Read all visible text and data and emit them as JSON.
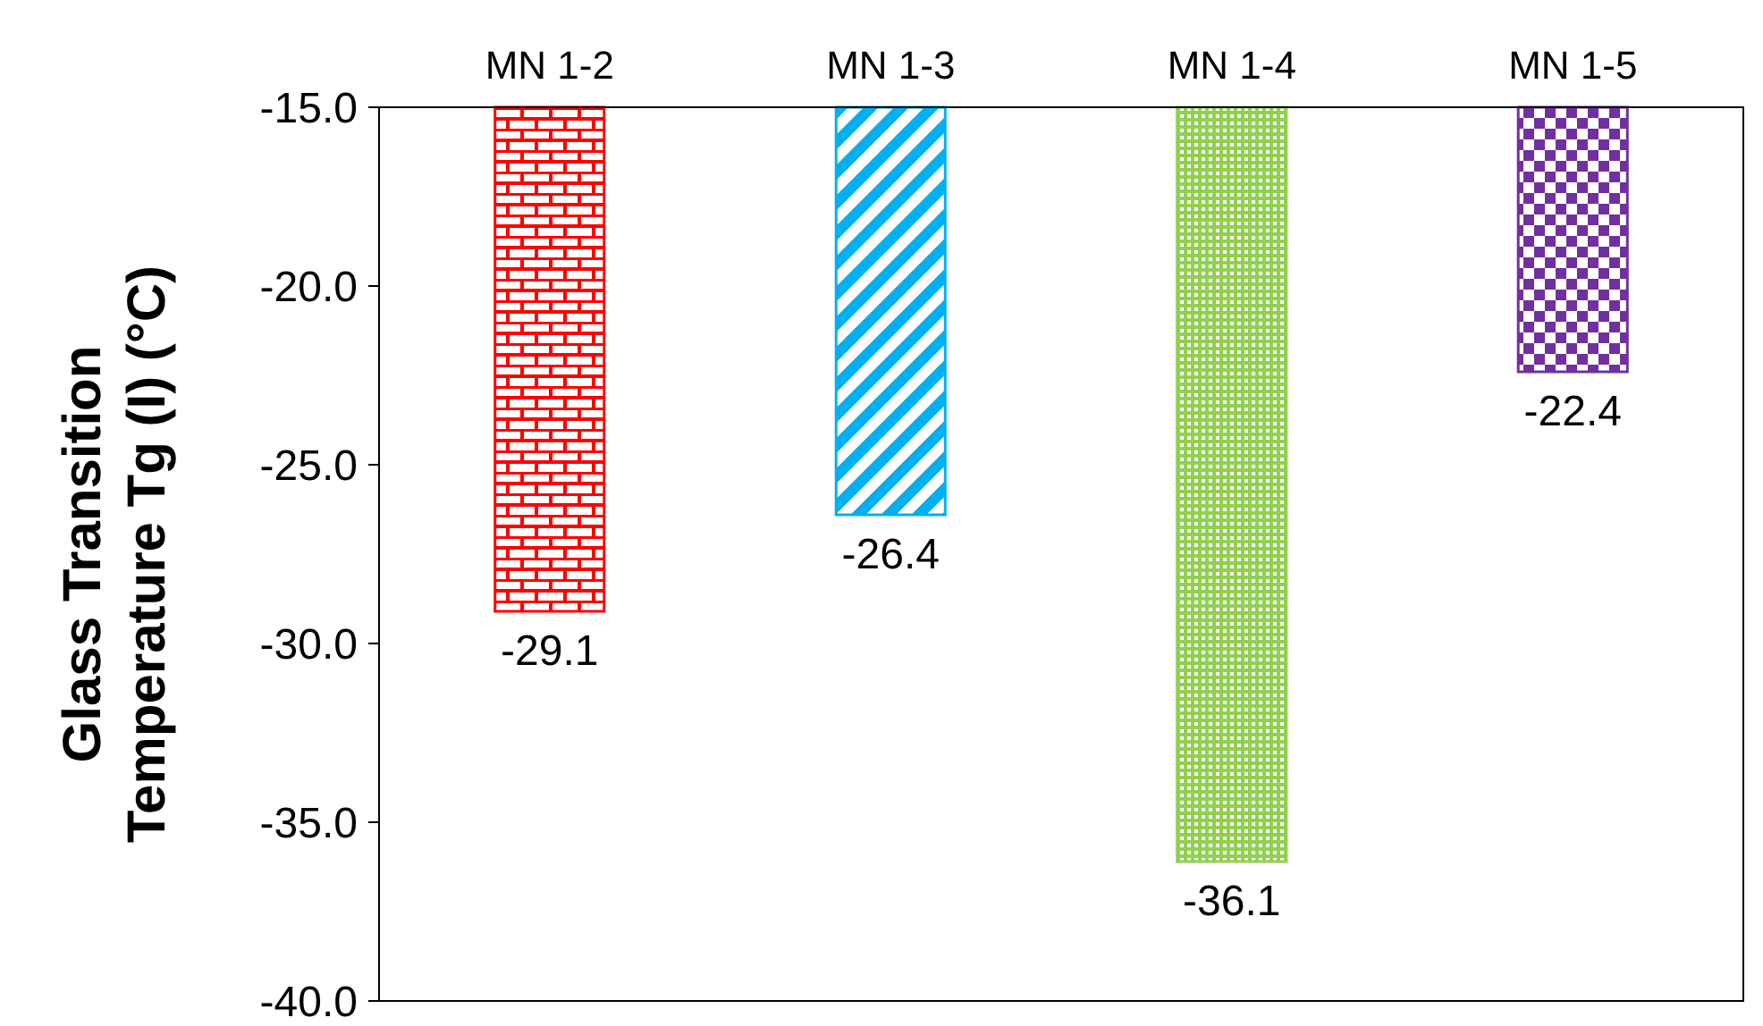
{
  "chart_data": {
    "type": "bar",
    "ylabel": "Glass Transition\nTemperature Tg (I) (°C)",
    "categories": [
      "MN 1-2",
      "MN 1-3",
      "MN 1-4",
      "MN 1-5"
    ],
    "values": [
      -29.1,
      -26.4,
      -36.1,
      -22.4
    ],
    "colors": [
      "#ff0000",
      "#00b0f0",
      "#92d050",
      "#7030a0"
    ],
    "ylim": [
      -40,
      -15
    ],
    "yticks": [
      {
        "value": -40,
        "label": "-40.0"
      },
      {
        "value": -35,
        "label": "-35.0"
      },
      {
        "value": -30,
        "label": "-30.0"
      },
      {
        "value": -25,
        "label": "-25.0"
      },
      {
        "value": -20,
        "label": "-20.0"
      },
      {
        "value": -15,
        "label": "-15.0"
      }
    ],
    "data_labels": true,
    "grid": false
  }
}
